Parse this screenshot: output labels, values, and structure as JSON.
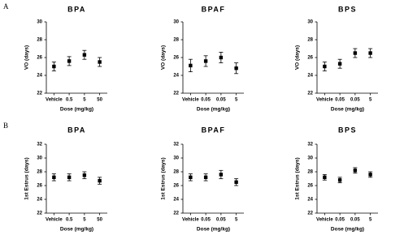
{
  "panel_labels": [
    "A",
    "B"
  ],
  "chart_data": [
    {
      "type": "dot",
      "title": "BPA",
      "xlabel": "Dose (mg/kg)",
      "ylabel": "VO (days)",
      "color": "#000000",
      "categories": [
        "Vehicle",
        "0.5",
        "5",
        "50"
      ],
      "values": [
        25.0,
        25.6,
        26.3,
        25.5
      ],
      "errors": [
        0.5,
        0.5,
        0.5,
        0.5
      ],
      "ylim": [
        22,
        30
      ],
      "yticks": [
        22,
        24,
        26,
        28,
        30
      ]
    },
    {
      "type": "dot",
      "title": "BPAF",
      "xlabel": "Dose (mg/kg)",
      "ylabel": "VO (days)",
      "color": "#000000",
      "categories": [
        "Vehicle",
        "0.05",
        "0.05",
        "5"
      ],
      "values": [
        25.1,
        25.6,
        26.0,
        24.8
      ],
      "errors": [
        0.7,
        0.6,
        0.6,
        0.6
      ],
      "ylim": [
        22,
        30
      ],
      "yticks": [
        22,
        24,
        26,
        28,
        30
      ]
    },
    {
      "type": "dot",
      "title": "BPS",
      "xlabel": "Dose (mg/kg)",
      "ylabel": "VO (days)",
      "color": "#000000",
      "categories": [
        "Vehicle",
        "0.05",
        "0.05",
        "5"
      ],
      "values": [
        25.0,
        25.3,
        26.5,
        26.5
      ],
      "errors": [
        0.5,
        0.5,
        0.5,
        0.5
      ],
      "ylim": [
        22,
        30
      ],
      "yticks": [
        22,
        24,
        26,
        28,
        30
      ]
    },
    {
      "type": "dot",
      "title": "BPA",
      "xlabel": "Dose (mg/kg)",
      "ylabel": "1st Estrus (days)",
      "color": "#000000",
      "categories": [
        "Vehicle",
        "0.5",
        "5",
        "50"
      ],
      "values": [
        27.2,
        27.2,
        27.5,
        26.7
      ],
      "errors": [
        0.5,
        0.5,
        0.5,
        0.5
      ],
      "ylim": [
        22,
        32
      ],
      "yticks": [
        22,
        24,
        26,
        28,
        30,
        32
      ]
    },
    {
      "type": "dot",
      "title": "BPAF",
      "xlabel": "Dose (mg/kg)",
      "ylabel": "1st Estrus (days)",
      "color": "#000000",
      "categories": [
        "Vehicle",
        "0.05",
        "0.05",
        "5"
      ],
      "values": [
        27.2,
        27.2,
        27.6,
        26.5
      ],
      "errors": [
        0.5,
        0.5,
        0.6,
        0.5
      ],
      "ylim": [
        22,
        32
      ],
      "yticks": [
        22,
        24,
        26,
        28,
        30,
        32
      ]
    },
    {
      "type": "dot",
      "title": "BPS",
      "xlabel": "Dose (mg/kg)",
      "ylabel": "1st Estrus (days)",
      "color": "#000000",
      "categories": [
        "Vehicle",
        "0.05",
        "0.05",
        "5"
      ],
      "values": [
        27.2,
        26.8,
        28.2,
        27.6
      ],
      "errors": [
        0.4,
        0.4,
        0.4,
        0.4
      ],
      "ylim": [
        22,
        32
      ],
      "yticks": [
        22,
        24,
        26,
        28,
        30,
        32
      ]
    }
  ]
}
